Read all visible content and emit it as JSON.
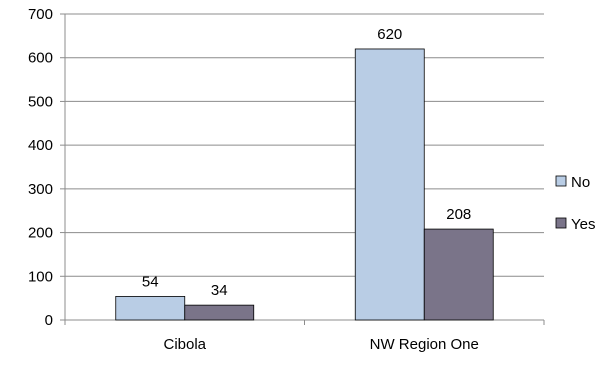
{
  "chart_data": {
    "type": "bar",
    "categories": [
      "Cibola",
      "NW Region One"
    ],
    "series": [
      {
        "name": "No",
        "values": [
          54,
          620
        ]
      },
      {
        "name": "Yes",
        "values": [
          34,
          208
        ]
      }
    ],
    "title": "",
    "xlabel": "",
    "ylabel": "",
    "ylim": [
      0,
      700
    ],
    "yticks": [
      0,
      100,
      200,
      300,
      400,
      500,
      600,
      700
    ],
    "grid": true,
    "legend": "right",
    "colors": {
      "No": "#b9cde5",
      "Yes": "#7a7489",
      "gridline": "#8c8c8c",
      "bar_outline": "#000000"
    }
  }
}
